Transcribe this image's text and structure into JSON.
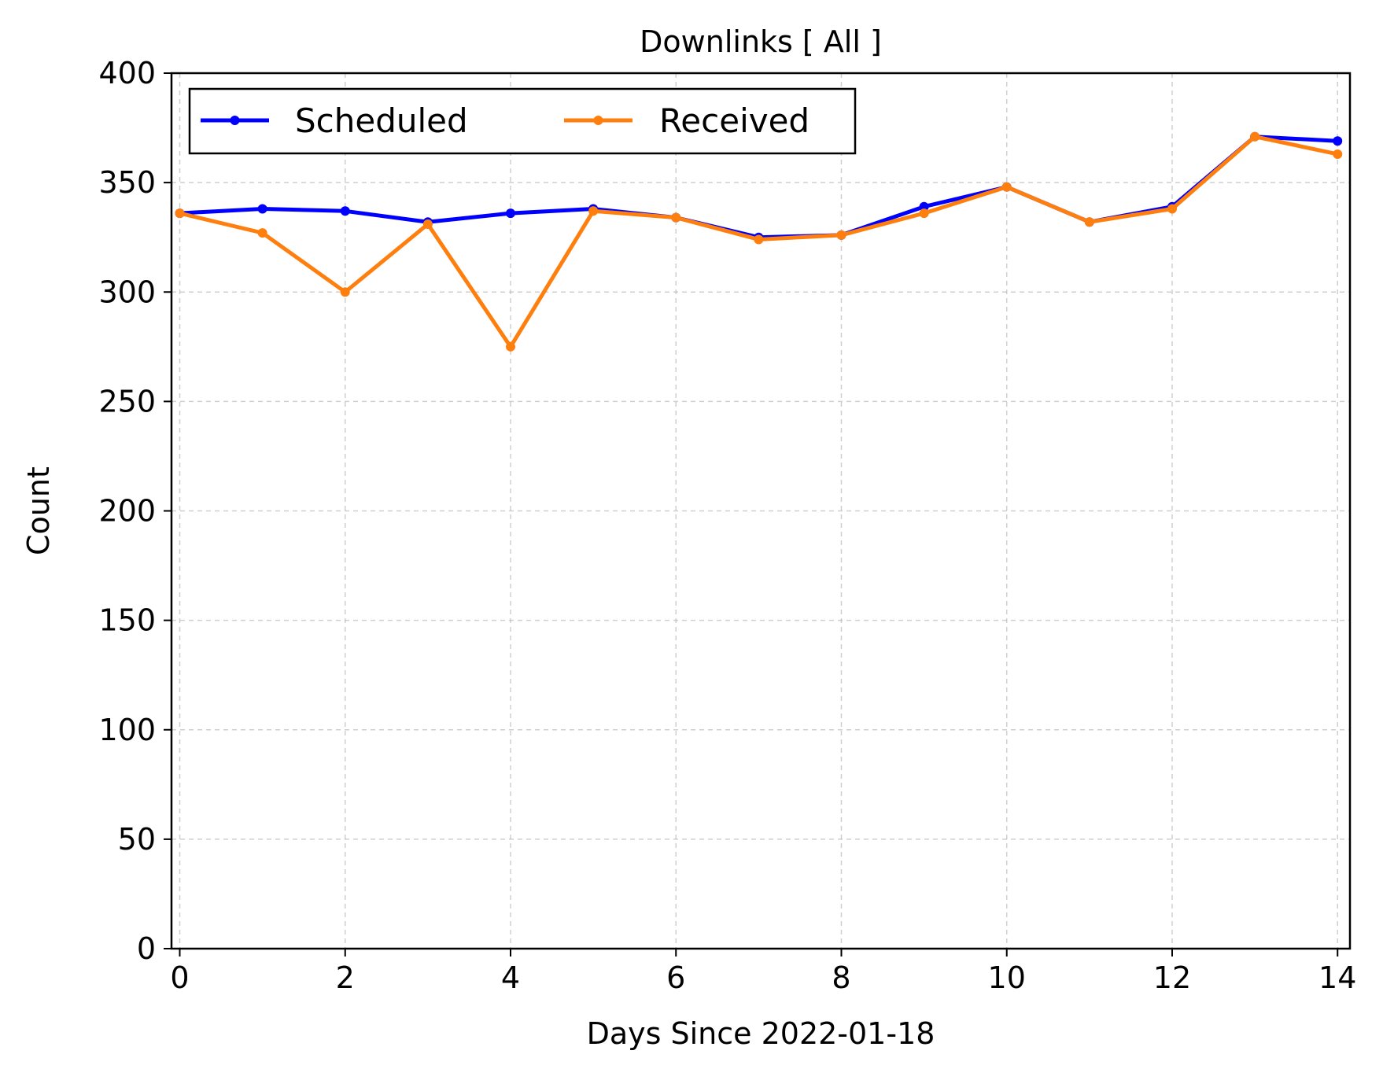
{
  "chart_data": {
    "type": "line",
    "title": "Downlinks [ All ]",
    "xlabel": "Days Since 2022-01-18",
    "ylabel": "Count",
    "xlim": [
      -0.1,
      14.15
    ],
    "ylim": [
      0,
      400
    ],
    "xticks": [
      0,
      2,
      4,
      6,
      8,
      10,
      12,
      14
    ],
    "yticks": [
      0,
      50,
      100,
      150,
      200,
      250,
      300,
      350,
      400
    ],
    "grid": true,
    "legend_position": "top-left",
    "x": [
      0,
      1,
      2,
      3,
      4,
      5,
      6,
      7,
      8,
      9,
      10,
      11,
      12,
      13,
      14
    ],
    "series": [
      {
        "name": "Scheduled",
        "color": "#0000ff",
        "values": [
          336,
          338,
          337,
          332,
          336,
          338,
          334,
          325,
          326,
          339,
          348,
          332,
          339,
          371,
          369
        ]
      },
      {
        "name": "Received",
        "color": "#ff7f0e",
        "values": [
          336,
          327,
          300,
          331,
          275,
          337,
          334,
          324,
          326,
          336,
          348,
          332,
          338,
          371,
          363
        ]
      }
    ]
  }
}
